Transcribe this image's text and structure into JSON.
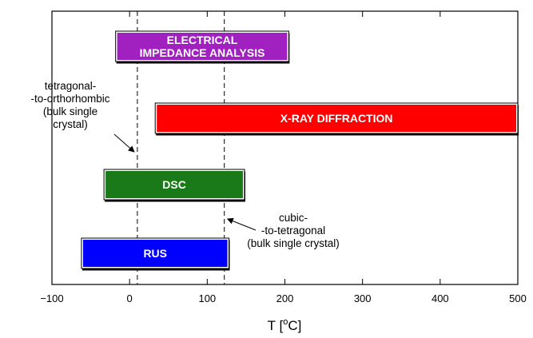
{
  "chart_data": {
    "type": "bar",
    "orientation": "horizontal",
    "title": "",
    "xlabel": {
      "prefix": "T  [",
      "sup": "o",
      "unit": "C]"
    },
    "ylabel": "",
    "xlim": [
      -100,
      500
    ],
    "xticks": [
      -100,
      0,
      100,
      200,
      300,
      400,
      500
    ],
    "xtick_labels": [
      "−100",
      "0",
      "100",
      "200",
      "300",
      "400",
      "500"
    ],
    "grid": false,
    "bars": [
      {
        "label": [
          "ELECTRICAL",
          "IMPEDANCE ANALYSIS"
        ],
        "start": -18,
        "end": 205,
        "color": "#a020c0"
      },
      {
        "label": [
          "X-RAY DIFFRACTION"
        ],
        "start": 33,
        "end": 500,
        "color": "#ff0000"
      },
      {
        "label": [
          "DSC"
        ],
        "start": -33,
        "end": 148,
        "color": "#1a7a1a"
      },
      {
        "label": [
          "RUS"
        ],
        "start": -62,
        "end": 128,
        "color": "#0000ff"
      }
    ],
    "reference_lines": [
      {
        "x": 10,
        "annotation": [
          "tetragonal-",
          "-to-orthorhombic",
          "(bulk single",
          "crystal)"
        ]
      },
      {
        "x": 122,
        "annotation": [
          "cubic-",
          "-to-tetragonal",
          "(bulk single crystal)"
        ]
      }
    ]
  }
}
